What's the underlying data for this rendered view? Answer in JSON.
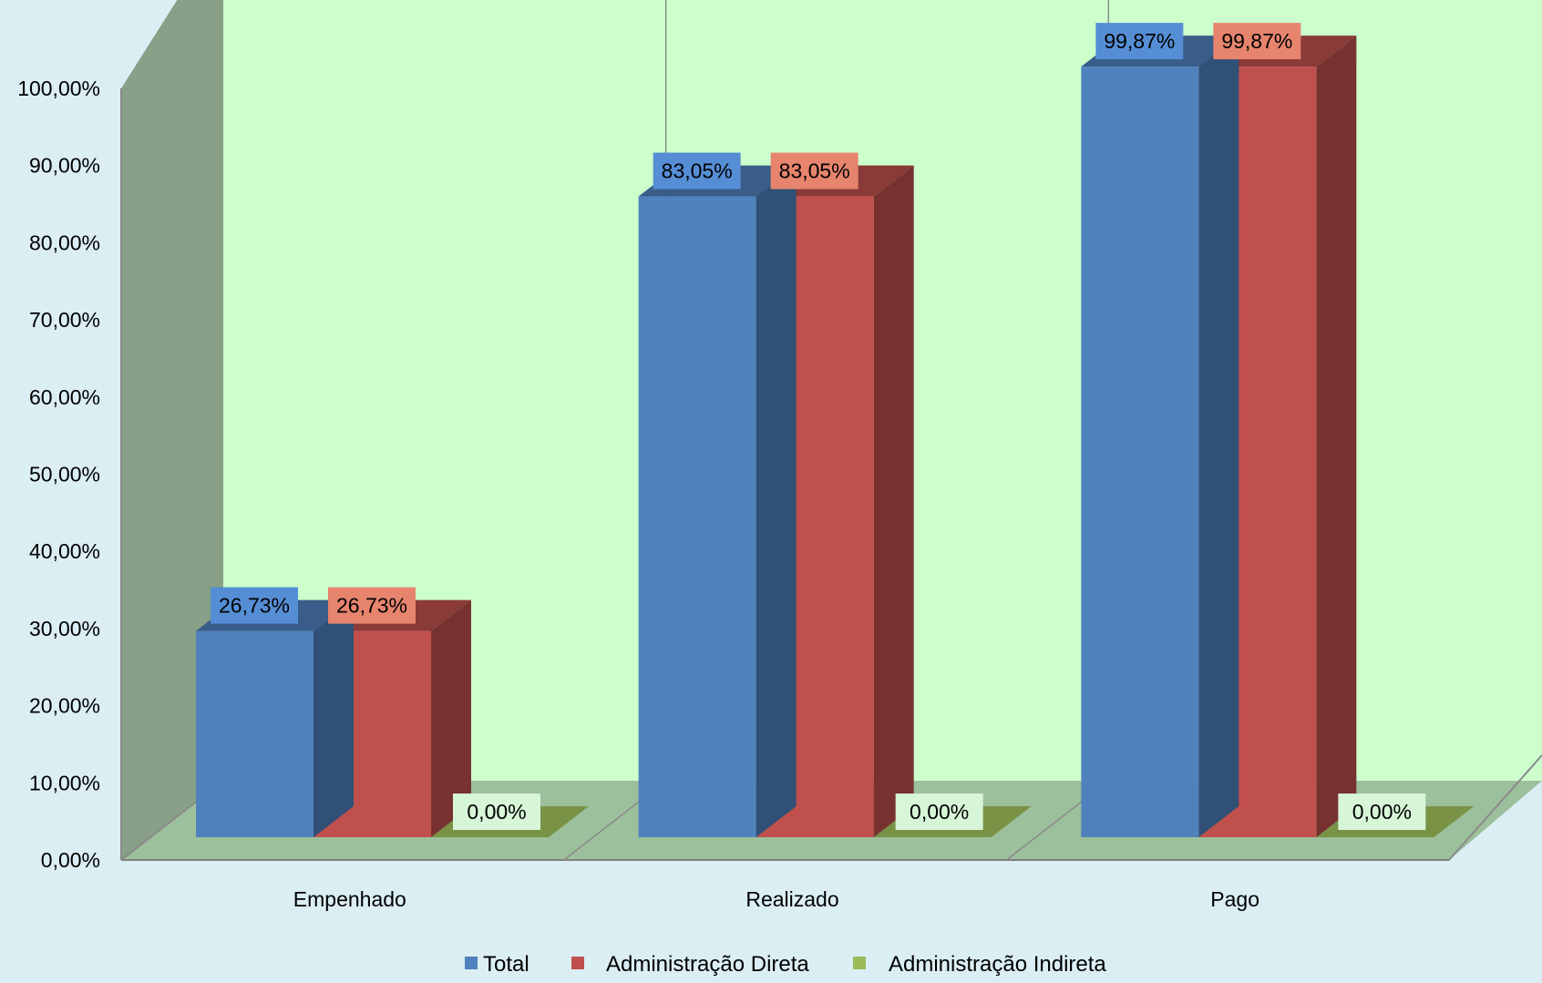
{
  "chart_data": {
    "type": "bar",
    "title": "",
    "xlabel": "",
    "ylabel": "",
    "categories": [
      "Empenhado",
      "Realizado",
      "Pago"
    ],
    "series": [
      {
        "name": "Total",
        "values": [
          26.73,
          83.05,
          99.87
        ],
        "labels": [
          "26,73%",
          "83,05%",
          "99,87%"
        ],
        "color": "#4f81bd",
        "label_bg": "#558ed5"
      },
      {
        "name": "Administração Direta",
        "values": [
          26.73,
          83.05,
          99.87
        ],
        "labels": [
          "26,73%",
          "83,05%",
          "99,87%"
        ],
        "color": "#c0504d",
        "label_bg": "#e6846e"
      },
      {
        "name": "Administração Indireta",
        "values": [
          0,
          0,
          0
        ],
        "labels": [
          "0,00%",
          "0,00%",
          "0,00%"
        ],
        "color": "#9bbb59",
        "label_bg": "#d7f5d7"
      }
    ],
    "ylim": [
      0,
      100
    ],
    "y_ticks": [
      "0,00%",
      "10,00%",
      "20,00%",
      "30,00%",
      "40,00%",
      "50,00%",
      "60,00%",
      "70,00%",
      "80,00%",
      "90,00%",
      "100,00%"
    ],
    "grid": false,
    "legend_position": "bottom",
    "colors": {
      "background": "#dbeef4",
      "back_wall": "#ccffcc",
      "side_wall": "#87a087",
      "floor": "#9cbf9c"
    }
  }
}
